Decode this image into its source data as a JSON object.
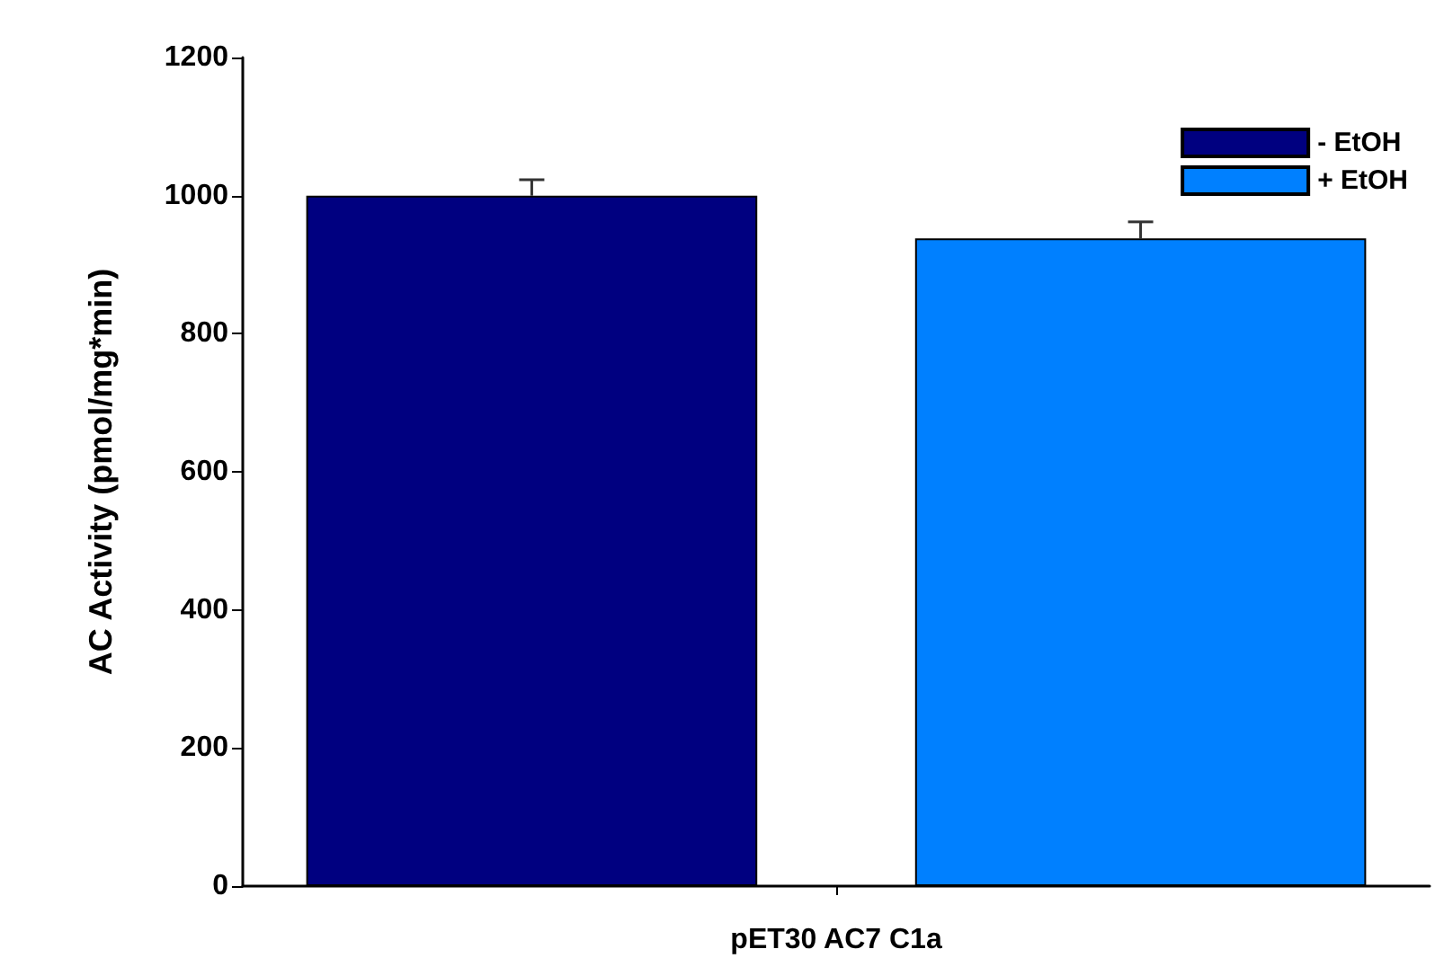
{
  "chart_data": {
    "type": "bar",
    "ylabel": "AC Activity (pmol/mg*min)",
    "categories": [
      "pET30 AC7 C1a"
    ],
    "series": [
      {
        "name": "- EtOH",
        "color": "#000080",
        "values": [
          1000
        ],
        "errors": [
          23
        ]
      },
      {
        "name": "+ EtOH",
        "color": "#0080ff",
        "values": [
          938
        ],
        "errors": [
          24
        ]
      }
    ],
    "ylim": [
      0,
      1200
    ],
    "yticks": [
      0,
      200,
      400,
      600,
      800,
      1000,
      1200
    ],
    "grid": false,
    "legend": "top right"
  }
}
